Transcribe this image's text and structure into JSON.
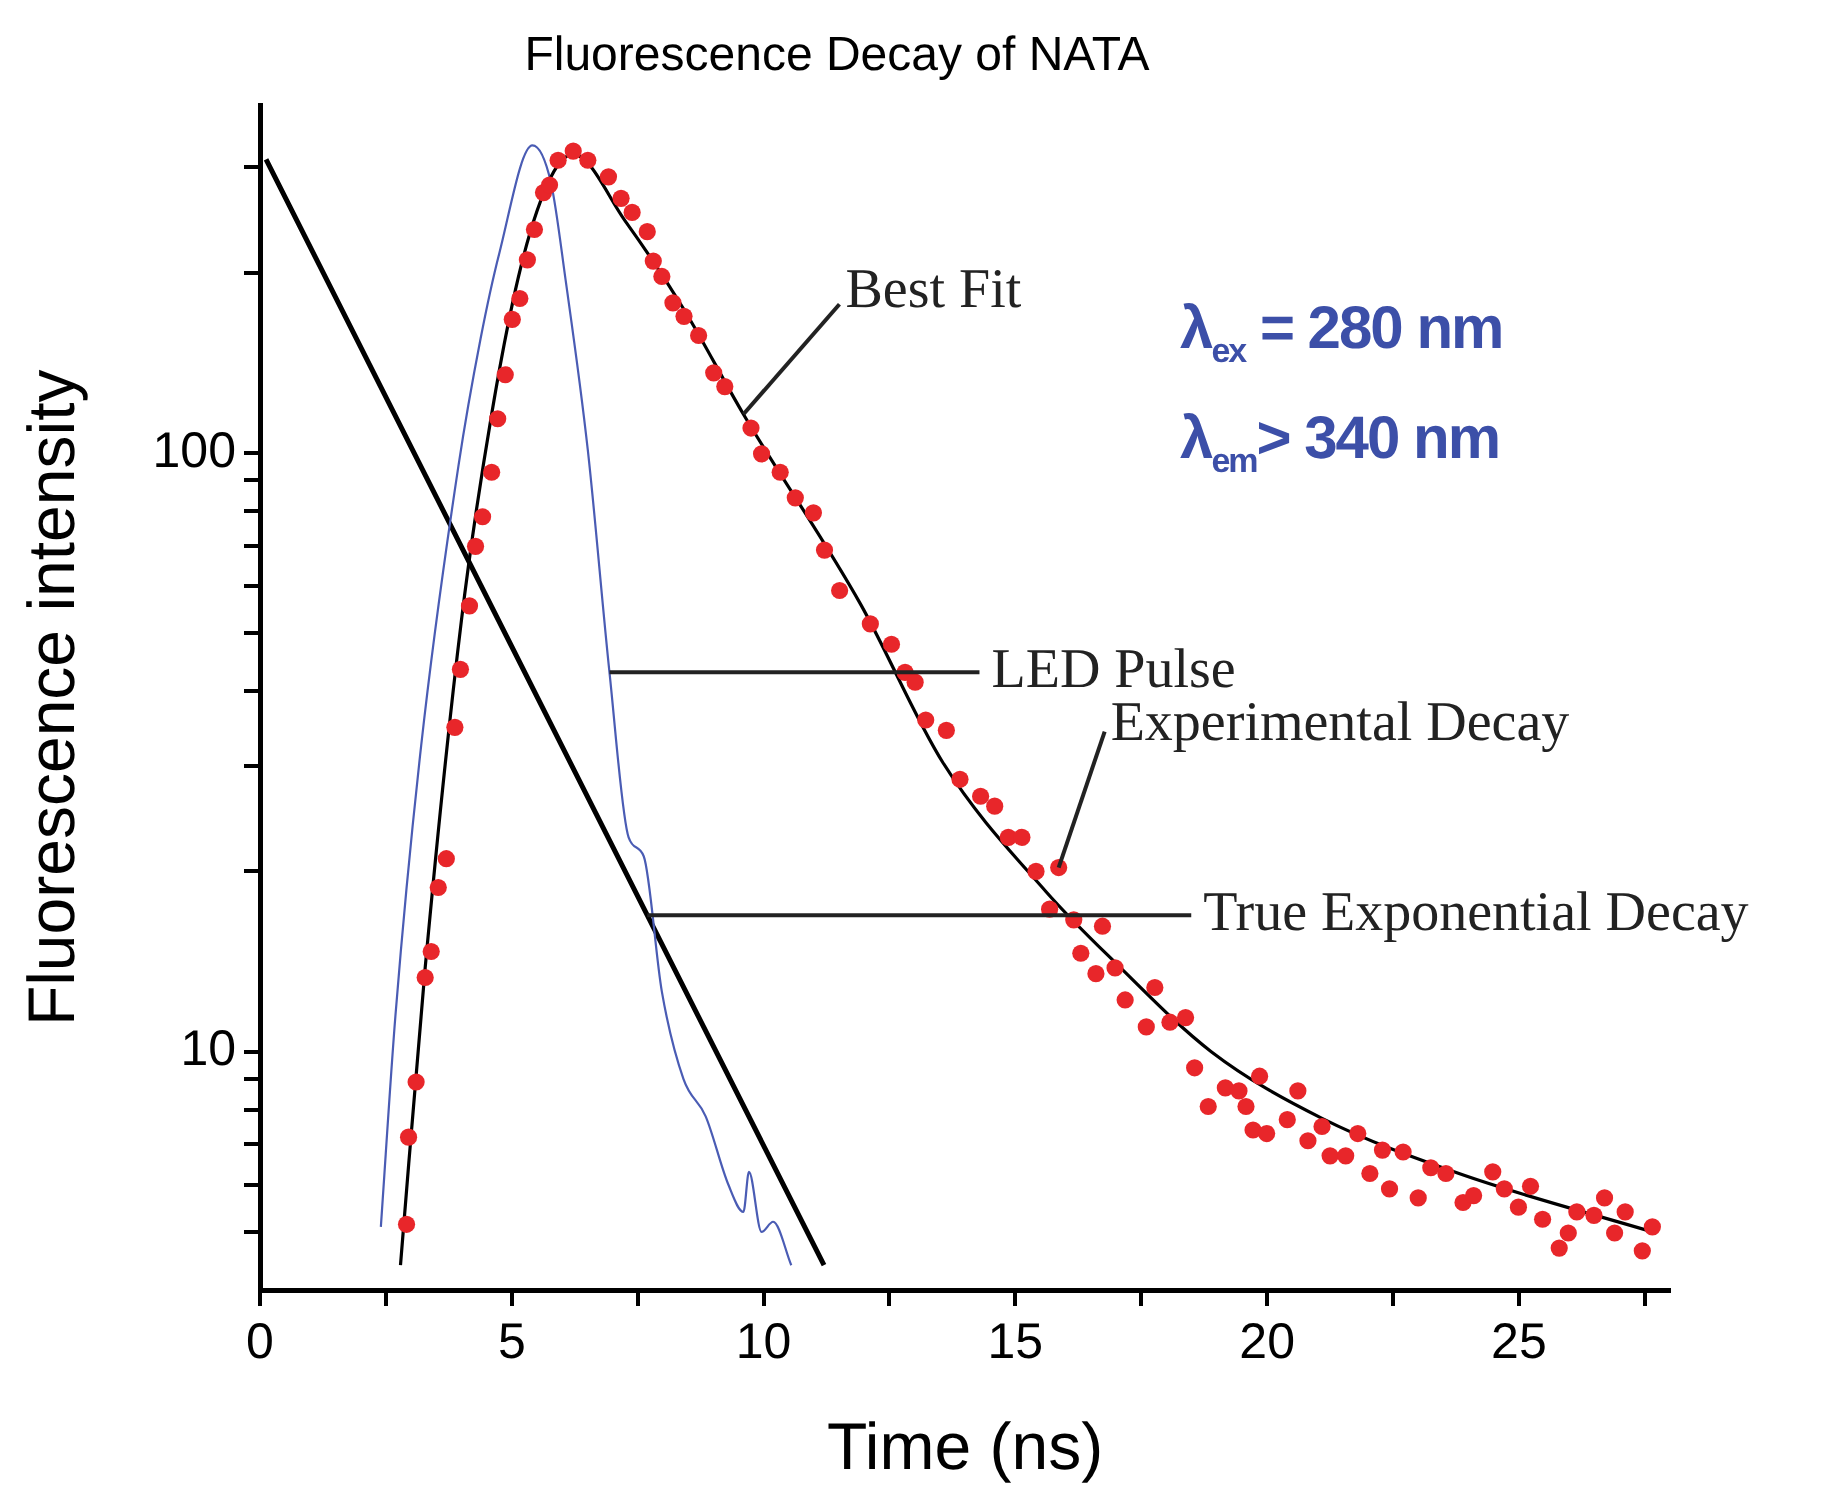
{
  "chart_data": {
    "type": "line",
    "title": "Fluorescence Decay of NATA",
    "xlabel": "Time (ns)",
    "ylabel": "Fluorescence intensity",
    "log": "y",
    "grid": false,
    "legend": false,
    "xlim": [
      0,
      28
    ],
    "xticks": [
      0,
      {
        "value": 2.5,
        "label": null
      },
      5,
      {
        "value": 7.5,
        "label": null
      },
      10,
      {
        "value": 12.5,
        "label": null
      },
      15,
      {
        "value": 17.5,
        "label": null
      },
      20,
      {
        "value": 22.5,
        "label": null
      },
      25,
      {
        "value": 27.5,
        "label": null
      }
    ],
    "ylim": [
      4,
      380
    ],
    "yticks": [
      {
        "value": 5,
        "label": null
      },
      {
        "value": 6,
        "label": null
      },
      {
        "value": 7,
        "label": null
      },
      {
        "value": 8,
        "label": null
      },
      {
        "value": 9,
        "label": null
      },
      10,
      {
        "value": 20,
        "label": null
      },
      {
        "value": 30,
        "label": null
      },
      {
        "value": 40,
        "label": null
      },
      {
        "value": 50,
        "label": null
      },
      {
        "value": 60,
        "label": null
      },
      {
        "value": 70,
        "label": null
      },
      {
        "value": 80,
        "label": null
      },
      {
        "value": 90,
        "label": null
      },
      100,
      {
        "value": 200,
        "label": null
      },
      {
        "value": 300,
        "label": null
      }
    ],
    "annotations": [
      "λ$_{ex}$ = 280 nm",
      "λ$_{em}$> 340 nm"
    ],
    "series": [
      {
        "name": "Experimental Decay",
        "type": "scatter",
        "marker": "circle",
        "color": "#e8262a",
        "x": [
          2.91,
          2.95,
          3.1,
          3.28,
          3.4,
          3.54,
          3.7,
          3.87,
          3.98,
          4.16,
          4.28,
          4.42,
          4.6,
          4.72,
          4.87,
          5.01,
          5.16,
          5.31,
          5.45,
          5.63,
          5.75,
          5.92,
          6.22,
          6.51,
          6.92,
          7.17,
          7.39,
          7.69,
          7.81,
          7.98,
          8.2,
          8.42,
          8.71,
          9.01,
          9.23,
          9.75,
          9.96,
          10.33,
          10.63,
          10.99,
          11.21,
          11.51,
          12.12,
          12.54,
          12.81,
          13.01,
          13.22,
          13.63,
          13.9,
          14.31,
          14.59,
          14.86,
          15.13,
          15.41,
          15.68,
          15.86,
          16.16,
          16.3,
          16.6,
          16.73,
          16.98,
          17.18,
          17.6,
          17.77,
          18.07,
          18.38,
          18.56,
          18.83,
          19.17,
          19.44,
          19.58,
          19.72,
          19.85,
          19.99,
          20.4,
          20.61,
          20.81,
          21.09,
          21.25,
          21.56,
          21.8,
          22.04,
          22.29,
          22.43,
          22.7,
          23.0,
          23.25,
          23.55,
          23.89,
          24.1,
          24.48,
          24.71,
          24.99,
          25.23,
          25.47,
          25.8,
          25.98,
          26.15,
          26.49,
          26.7,
          26.9,
          27.11,
          27.45,
          27.65
        ],
        "values": [
          5.15,
          7.2,
          8.9,
          13.3,
          14.7,
          18.8,
          21.0,
          34.8,
          43.5,
          55.5,
          69.8,
          78.2,
          92.8,
          114,
          135,
          167,
          181,
          210,
          236,
          272,
          280,
          308,
          319,
          308,
          289,
          266,
          252,
          234,
          209,
          197,
          178,
          169,
          157,
          136,
          129,
          110,
          99.6,
          92.8,
          84.1,
          79.4,
          68.8,
          58.9,
          51.8,
          47.9,
          43.0,
          41.4,
          35.8,
          34.4,
          28.5,
          26.7,
          25.7,
          22.8,
          22.8,
          20.0,
          17.3,
          20.3,
          16.6,
          14.6,
          13.5,
          16.2,
          13.8,
          12.2,
          11.0,
          12.8,
          11.2,
          11.4,
          9.4,
          8.1,
          8.7,
          8.6,
          8.1,
          7.4,
          9.1,
          7.3,
          7.7,
          8.6,
          7.1,
          7.5,
          6.7,
          6.7,
          7.3,
          6.26,
          6.85,
          5.9,
          6.8,
          5.7,
          6.4,
          6.26,
          5.6,
          5.75,
          6.3,
          5.9,
          5.5,
          5.96,
          5.25,
          4.7,
          4.98,
          5.4,
          5.33,
          5.7,
          4.98,
          5.4,
          4.65,
          5.1
        ]
      },
      {
        "name": "Best Fit",
        "type": "line",
        "color": "#000000",
        "x": [
          2.79,
          3.28,
          4.0,
          4.6,
          5.19,
          5.78,
          6.22,
          7.25,
          8.41,
          9.6,
          11.92,
          13.56,
          15.61,
          16.98,
          18.89,
          21.09,
          23.81,
          27.72
        ],
        "values": [
          4.4,
          13.8,
          52.5,
          116,
          206,
          289,
          315,
          244,
          174,
          116,
          56,
          30.4,
          18.5,
          14.1,
          10.0,
          7.74,
          6.26,
          4.98
        ]
      },
      {
        "name": "LED Pulse",
        "type": "line",
        "color": "#4a5cb4",
        "x": [
          2.4,
          2.69,
          3.2,
          3.94,
          4.38,
          4.75,
          5.41,
          5.78,
          6.07,
          6.51,
          6.94,
          7.32,
          7.62,
          7.98,
          8.41,
          8.85,
          9.3,
          9.6,
          9.71,
          9.96,
          10.19,
          10.55
        ],
        "values": [
          5.1,
          11.5,
          32.4,
          95,
          155,
          215,
          326,
          282,
          194,
          101,
          43,
          22.8,
          21.2,
          12.6,
          9.0,
          7.8,
          6.0,
          5.4,
          6.3,
          5.0,
          5.2,
          4.4
        ]
      },
      {
        "name": "True Exponential Decay",
        "type": "line",
        "color": "#000000",
        "x": [
          0.12,
          7.69,
          11.2
        ],
        "values": [
          309,
          16.9,
          4.4
        ]
      }
    ]
  }
}
